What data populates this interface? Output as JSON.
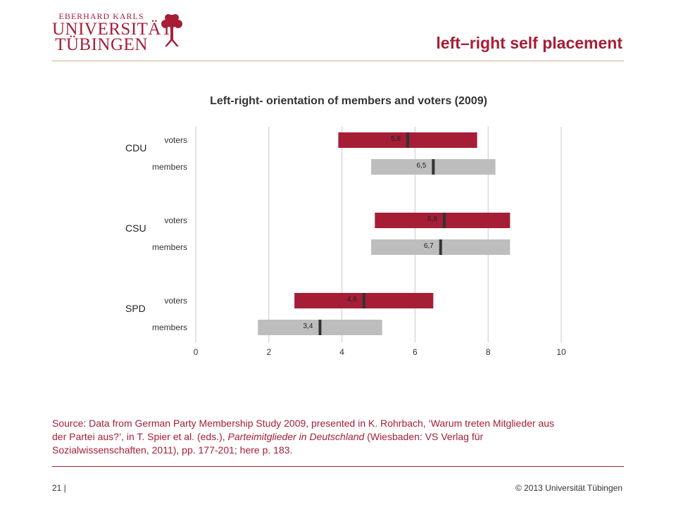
{
  "header": {
    "logo_line1": "EBERHARD KARLS",
    "logo_line2": "UNIVERSITÄT",
    "logo_line3": "TÜBINGEN",
    "title": "left–right self placement"
  },
  "chart_data": {
    "type": "bar",
    "title": "Left-right- orientation of members and voters (2009)",
    "xlim": [
      0,
      10
    ],
    "x_ticks": [
      0,
      2,
      4,
      6,
      8,
      10
    ],
    "grid": true,
    "groups": [
      {
        "party": "CDU",
        "rows": [
          {
            "label": "voters",
            "series": "voters",
            "low": 3.9,
            "high": 7.7,
            "mean": 5.8,
            "mean_label": "5,8"
          },
          {
            "label": "members",
            "series": "members",
            "low": 4.8,
            "high": 8.2,
            "mean": 6.5,
            "mean_label": "6,5"
          }
        ]
      },
      {
        "party": "CSU",
        "rows": [
          {
            "label": "voters",
            "series": "voters",
            "low": 4.9,
            "high": 8.6,
            "mean": 6.8,
            "mean_label": "6,8"
          },
          {
            "label": "members",
            "series": "members",
            "low": 4.8,
            "high": 8.6,
            "mean": 6.7,
            "mean_label": "6,7"
          }
        ]
      },
      {
        "party": "SPD",
        "rows": [
          {
            "label": "voters",
            "series": "voters",
            "low": 2.7,
            "high": 6.5,
            "mean": 4.6,
            "mean_label": "4,6"
          },
          {
            "label": "members",
            "series": "members",
            "low": 1.7,
            "high": 5.1,
            "mean": 3.4,
            "mean_label": "3,4"
          }
        ]
      }
    ],
    "colors": {
      "voters": "#a51e36",
      "members": "#bdbdbd",
      "mean_marker": "#333333",
      "grid": "#c8c8c8"
    }
  },
  "source": {
    "line1": "Source: Data from German Party Membership Study 2009, presented in K. Rohrbach, ‘Warum treten Mitglieder aus",
    "line2_a": "der Partei aus?’, in T. Spier et al. (eds.), ",
    "line2_italic": "Parteimitglieder in Deutschland",
    "line2_b": " (Wiesbaden: VS Verlag für",
    "line3": "Sozialwissenschaften, 2011), pp. 177-201; here p. 183."
  },
  "footer": {
    "page": "21 |",
    "copyright": "© 2013 Universität Tübingen"
  }
}
